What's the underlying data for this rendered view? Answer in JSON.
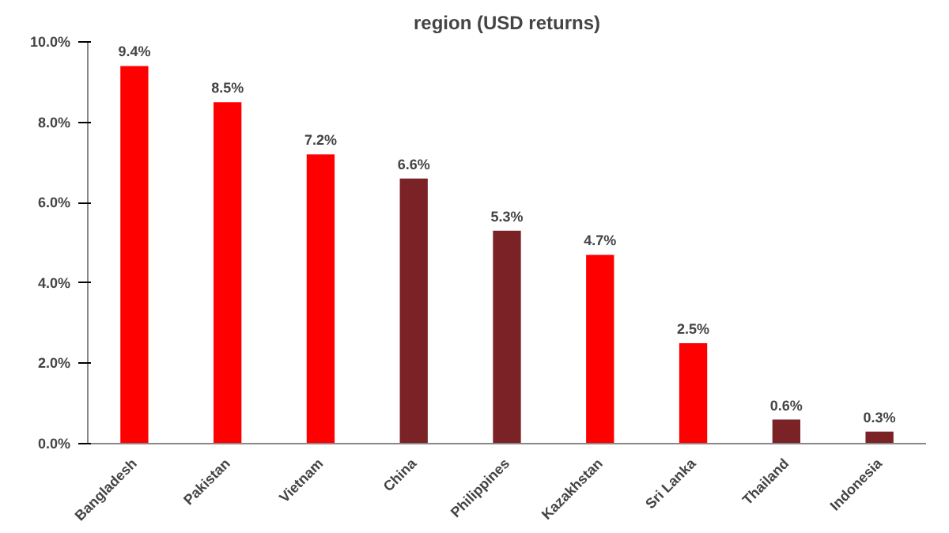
{
  "chart_data": {
    "type": "bar",
    "title": "region (USD returns)",
    "categories": [
      "Bangladesh",
      "Pakistan",
      "Vietnam",
      "China",
      "Philippines",
      "Kazakhstan",
      "Sri Lanka",
      "Thailand",
      "Indonesia"
    ],
    "values": [
      9.4,
      8.5,
      7.2,
      6.6,
      5.3,
      4.7,
      2.5,
      0.6,
      0.3
    ],
    "colors": [
      "#ff0000",
      "#ff0000",
      "#ff0000",
      "#7b2226",
      "#7b2226",
      "#ff0000",
      "#ff0000",
      "#7b2226",
      "#7b2226"
    ],
    "value_labels": [
      "9.4%",
      "8.5%",
      "7.2%",
      "6.6%",
      "5.3%",
      "4.7%",
      "2.5%",
      "0.6%",
      "0.3%"
    ],
    "ylim": [
      0,
      10
    ],
    "yticks": [
      {
        "value": 0,
        "label": "0.0%"
      },
      {
        "value": 2,
        "label": "2.0%"
      },
      {
        "value": 4,
        "label": "4.0%"
      },
      {
        "value": 6,
        "label": "6.0%"
      },
      {
        "value": 8,
        "label": "8.0%"
      },
      {
        "value": 10,
        "label": "10.0%"
      }
    ],
    "grid": false
  }
}
